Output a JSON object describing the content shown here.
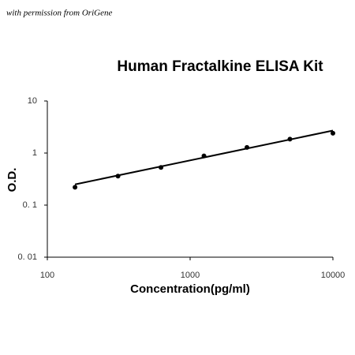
{
  "watermark": "with permission from OriGene",
  "chart_data": {
    "type": "scatter",
    "title": "Human Fractalkine ELISA Kit",
    "xlabel": "Concentration(pg/ml)",
    "ylabel": "O.D.",
    "x": [
      156.25,
      312.5,
      625,
      1250,
      2500,
      5000,
      10000
    ],
    "values": [
      0.22,
      0.36,
      0.53,
      0.88,
      1.28,
      1.85,
      2.4
    ],
    "color": "#000000",
    "trendline": {
      "x": [
        156.25,
        10000
      ],
      "values": [
        0.25,
        2.7
      ]
    },
    "xscale": "log",
    "yscale": "log",
    "xlim": [
      100,
      10000
    ],
    "ylim": [
      0.01,
      10
    ],
    "xticks": [
      100,
      1000,
      10000
    ],
    "yticks": [
      {
        "value": 0.01,
        "label": "0. 01"
      },
      {
        "value": 0.1,
        "label": "0. 1"
      },
      1,
      10
    ]
  }
}
